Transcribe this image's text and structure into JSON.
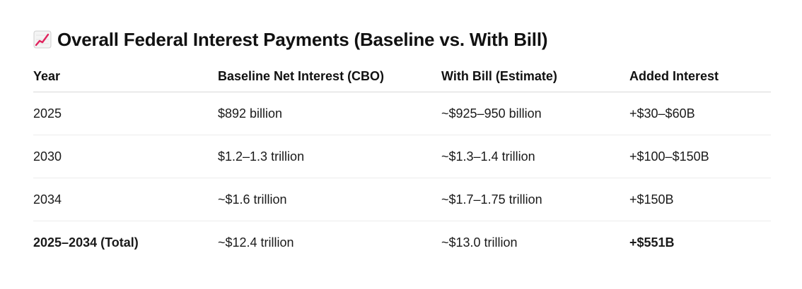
{
  "heading": {
    "icon": "chart-increasing-icon",
    "title": "Overall Federal Interest Payments (Baseline vs. With Bill)"
  },
  "table": {
    "headers": [
      "Year",
      "Baseline Net Interest (CBO)",
      "With Bill (Estimate)",
      "Added Interest"
    ],
    "rows": [
      [
        "2025",
        "$892 billion",
        "~$925–950 billion",
        "+$30–$60B"
      ],
      [
        "2030",
        "$1.2–1.3 trillion",
        "~$1.3–1.4 trillion",
        "+$100–$150B"
      ],
      [
        "2034",
        "~$1.6 trillion",
        "~$1.7–1.75 trillion",
        "+$150B"
      ],
      [
        "2025–2034 (Total)",
        "~$12.4 trillion",
        "~$13.0 trillion",
        "+$551B"
      ]
    ]
  },
  "colors": {
    "icon_line": "#e0245e",
    "header_rule": "#d9d9d9",
    "row_rule": "#ececec"
  }
}
